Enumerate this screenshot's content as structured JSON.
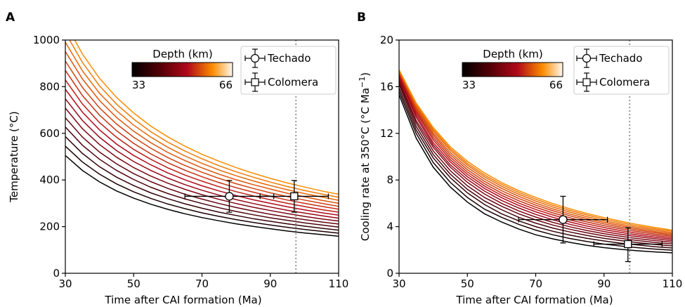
{
  "chart_data": [
    {
      "panel": "A",
      "type": "line",
      "xlabel": "Time after CAI formation (Ma)",
      "ylabel": "Temperature (°C)",
      "xlim": [
        30,
        110
      ],
      "ylim": [
        0,
        1000
      ],
      "xticks": [
        30,
        50,
        70,
        90,
        110
      ],
      "yticks": [
        0,
        200,
        400,
        600,
        800,
        1000
      ],
      "x": [
        30,
        35,
        40,
        45,
        50,
        55,
        60,
        65,
        70,
        75,
        80,
        85,
        90,
        95,
        100,
        105,
        110
      ],
      "series": [
        {
          "values": [
            505,
            441,
            392,
            353,
            322,
            296,
            274,
            255,
            239,
            225,
            212,
            201,
            191,
            181,
            173,
            166,
            159
          ]
        },
        {
          "values": [
            545,
            477,
            425,
            383,
            349,
            321,
            297,
            277,
            259,
            244,
            230,
            218,
            207,
            197,
            188,
            180,
            172
          ]
        },
        {
          "values": [
            586,
            514,
            457,
            412,
            376,
            345,
            320,
            298,
            279,
            262,
            248,
            234,
            223,
            212,
            202,
            193,
            185
          ]
        },
        {
          "values": [
            627,
            549,
            489,
            441,
            402,
            369,
            342,
            319,
            299,
            281,
            265,
            251,
            238,
            227,
            216,
            207,
            198
          ]
        },
        {
          "values": [
            667,
            584,
            520,
            469,
            427,
            393,
            364,
            339,
            318,
            299,
            282,
            267,
            253,
            241,
            230,
            220,
            211
          ]
        },
        {
          "values": [
            708,
            620,
            552,
            498,
            453,
            417,
            386,
            360,
            337,
            317,
            299,
            283,
            269,
            256,
            244,
            233,
            224
          ]
        },
        {
          "values": [
            748,
            655,
            583,
            526,
            479,
            441,
            408,
            380,
            356,
            335,
            316,
            299,
            284,
            270,
            258,
            247,
            236
          ]
        },
        {
          "values": [
            789,
            691,
            615,
            554,
            505,
            465,
            430,
            401,
            375,
            353,
            333,
            315,
            300,
            285,
            272,
            260,
            249
          ]
        },
        {
          "values": [
            829,
            726,
            646,
            583,
            531,
            489,
            452,
            421,
            395,
            371,
            350,
            332,
            315,
            300,
            286,
            273,
            262
          ]
        },
        {
          "values": [
            870,
            762,
            678,
            611,
            557,
            512,
            474,
            442,
            414,
            389,
            367,
            348,
            330,
            314,
            300,
            287,
            275
          ]
        },
        {
          "values": [
            910,
            797,
            709,
            640,
            583,
            536,
            496,
            462,
            433,
            407,
            384,
            364,
            345,
            329,
            314,
            300,
            287
          ]
        },
        {
          "values": [
            951,
            833,
            741,
            668,
            609,
            560,
            518,
            483,
            452,
            425,
            401,
            380,
            361,
            343,
            328,
            313,
            300
          ]
        },
        {
          "values": [
            991,
            868,
            772,
            697,
            635,
            584,
            540,
            503,
            471,
            443,
            418,
            396,
            376,
            358,
            342,
            327,
            313
          ]
        },
        {
          "values": [
            1032,
            904,
            804,
            725,
            661,
            607,
            562,
            524,
            491,
            461,
            435,
            412,
            391,
            372,
            355,
            340,
            326
          ]
        },
        {
          "values": [
            1073,
            940,
            836,
            754,
            687,
            631,
            585,
            545,
            510,
            480,
            453,
            429,
            407,
            387,
            370,
            353,
            339
          ]
        }
      ],
      "colorbar": {
        "title": "Depth (km)",
        "min_label": "33",
        "max_label": "66",
        "placement": "top-center"
      },
      "legend": {
        "entries": [
          "Techado",
          "Colomera"
        ],
        "placement": "top-right"
      },
      "points": [
        {
          "name": "Techado",
          "marker": "circle",
          "x": 78,
          "y": 330,
          "xerr": [
            65,
            91
          ],
          "yerr": [
            262,
            398
          ]
        },
        {
          "name": "Colomera",
          "marker": "square",
          "x": 97,
          "y": 330,
          "xerr": [
            87,
            107
          ],
          "yerr": [
            262,
            398
          ]
        }
      ],
      "vline": 97.5,
      "grid": false,
      "colors": {
        "low": "#000000",
        "mid": "#b0081a",
        "high": "#fb8c00",
        "max": "#fff8ee",
        "vline": "#999999"
      }
    },
    {
      "panel": "B",
      "type": "line",
      "xlabel": "Time after CAI formation (Ma)",
      "ylabel": "Cooling rate at 350°C (°C Ma",
      "ylabel_sup": "−1",
      "ylabel_end": ")",
      "xlim": [
        30,
        110
      ],
      "ylim": [
        0,
        20
      ],
      "xticks": [
        30,
        50,
        70,
        90,
        110
      ],
      "yticks": [
        0,
        4,
        8,
        12,
        16,
        20
      ],
      "x": [
        30,
        35,
        40,
        45,
        50,
        55,
        60,
        65,
        70,
        75,
        80,
        85,
        90,
        95,
        100,
        105,
        110
      ],
      "series": [
        {
          "values": [
            15.3,
            11.6,
            9.1,
            7.4,
            6.1,
            5.1,
            4.4,
            3.8,
            3.3,
            2.95,
            2.65,
            2.4,
            2.2,
            2.05,
            1.93,
            1.83,
            1.75
          ]
        },
        {
          "values": [
            15.6,
            12.0,
            9.5,
            7.8,
            6.5,
            5.5,
            4.8,
            4.2,
            3.7,
            3.3,
            2.98,
            2.72,
            2.5,
            2.33,
            2.19,
            2.07,
            1.98
          ]
        },
        {
          "values": [
            15.9,
            12.3,
            9.9,
            8.2,
            6.9,
            5.9,
            5.1,
            4.5,
            4.0,
            3.6,
            3.28,
            3.0,
            2.77,
            2.58,
            2.42,
            2.28,
            2.17
          ]
        },
        {
          "values": [
            16.2,
            12.6,
            10.2,
            8.5,
            7.2,
            6.2,
            5.45,
            4.8,
            4.3,
            3.88,
            3.54,
            3.25,
            3.0,
            2.8,
            2.62,
            2.47,
            2.35
          ]
        },
        {
          "values": [
            16.4,
            12.9,
            10.5,
            8.8,
            7.5,
            6.5,
            5.75,
            5.1,
            4.58,
            4.14,
            3.78,
            3.47,
            3.21,
            2.99,
            2.8,
            2.64,
            2.51
          ]
        },
        {
          "values": [
            16.6,
            13.1,
            10.8,
            9.1,
            7.8,
            6.8,
            6.0,
            5.35,
            4.82,
            4.37,
            3.99,
            3.67,
            3.4,
            3.17,
            2.97,
            2.8,
            2.66
          ]
        },
        {
          "values": [
            16.8,
            13.4,
            11.0,
            9.3,
            8.05,
            7.05,
            6.25,
            5.6,
            5.05,
            4.59,
            4.2,
            3.87,
            3.58,
            3.34,
            3.13,
            2.95,
            2.8
          ]
        },
        {
          "values": [
            17.0,
            13.6,
            11.2,
            9.55,
            8.28,
            7.28,
            6.48,
            5.82,
            5.27,
            4.8,
            4.4,
            4.05,
            3.75,
            3.5,
            3.28,
            3.09,
            2.93
          ]
        },
        {
          "values": [
            17.1,
            13.8,
            11.45,
            9.75,
            8.48,
            7.48,
            6.68,
            6.02,
            5.47,
            5.0,
            4.58,
            4.23,
            3.92,
            3.65,
            3.42,
            3.22,
            3.05
          ]
        },
        {
          "values": [
            17.2,
            13.95,
            11.65,
            9.95,
            8.68,
            7.68,
            6.88,
            6.22,
            5.66,
            5.18,
            4.76,
            4.4,
            4.08,
            3.8,
            3.56,
            3.35,
            3.17
          ]
        },
        {
          "values": [
            17.3,
            14.1,
            11.85,
            10.15,
            8.88,
            7.88,
            7.08,
            6.42,
            5.85,
            5.36,
            4.93,
            4.56,
            4.23,
            3.94,
            3.69,
            3.47,
            3.28
          ]
        },
        {
          "values": [
            17.35,
            14.25,
            12.02,
            10.35,
            9.08,
            8.08,
            7.28,
            6.6,
            6.02,
            5.52,
            5.08,
            4.7,
            4.37,
            4.07,
            3.81,
            3.58,
            3.38
          ]
        },
        {
          "values": [
            17.4,
            14.4,
            12.2,
            10.55,
            9.27,
            8.27,
            7.46,
            6.78,
            6.19,
            5.68,
            5.24,
            4.85,
            4.51,
            4.2,
            3.93,
            3.7,
            3.49
          ]
        },
        {
          "values": [
            17.42,
            14.5,
            12.35,
            10.7,
            9.43,
            8.43,
            7.62,
            6.94,
            6.35,
            5.84,
            5.39,
            5.0,
            4.65,
            4.33,
            4.05,
            3.81,
            3.6
          ]
        },
        {
          "values": [
            17.45,
            14.6,
            12.5,
            10.85,
            9.6,
            8.6,
            7.78,
            7.09,
            6.5,
            5.98,
            5.53,
            5.13,
            4.78,
            4.46,
            4.17,
            3.92,
            3.7
          ]
        }
      ],
      "colorbar": {
        "title": "Depth (km)",
        "min_label": "33",
        "max_label": "66",
        "placement": "top-center"
      },
      "legend": {
        "entries": [
          "Techado",
          "Colomera"
        ],
        "placement": "top-right"
      },
      "points": [
        {
          "name": "Techado",
          "marker": "circle",
          "x": 78,
          "y": 4.6,
          "xerr": [
            65,
            91
          ],
          "yerr": [
            2.6,
            6.6
          ]
        },
        {
          "name": "Colomera",
          "marker": "square",
          "x": 97,
          "y": 2.5,
          "xerr": [
            87,
            107
          ],
          "yerr": [
            1.0,
            3.9
          ]
        }
      ],
      "vline": 97.5,
      "grid": false,
      "colors": {
        "low": "#000000",
        "mid": "#b0081a",
        "high": "#fb8c00",
        "max": "#fff8ee",
        "vline": "#999999"
      }
    }
  ]
}
